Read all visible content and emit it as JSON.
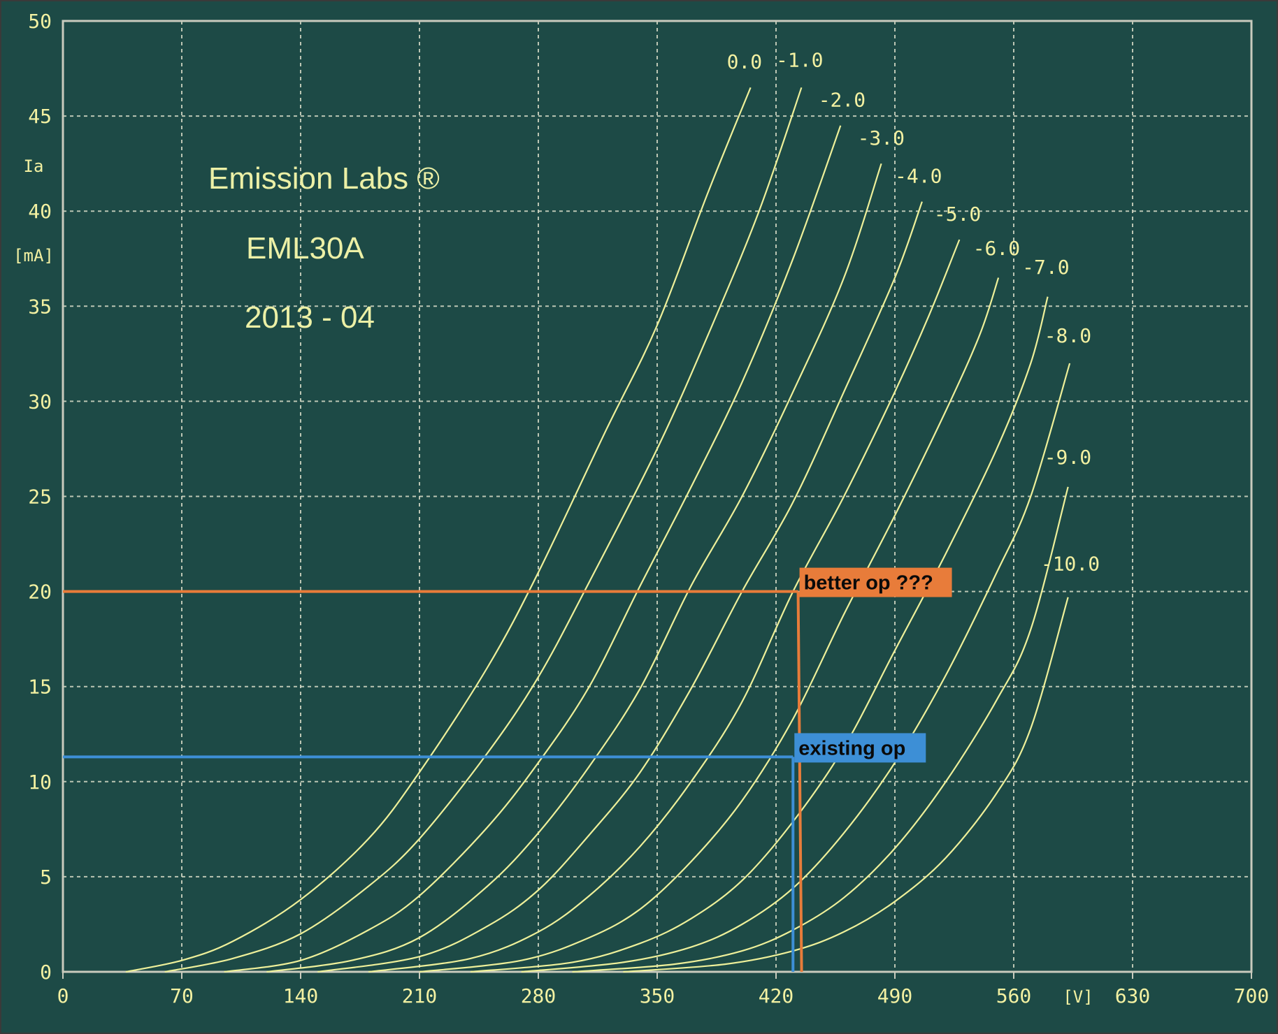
{
  "colors": {
    "background": "#1d4a46",
    "grid": "#d8dcc8",
    "curve": "#eef09a",
    "text": "#f3f1a2",
    "better_op": "#e87c3a",
    "existing_op": "#3d8fd6"
  },
  "brand": {
    "line1": "Emission Labs ®",
    "line2": "EML30A",
    "line3": "2013 - 04"
  },
  "chart_data": {
    "type": "line",
    "title": "",
    "xlabel": "[V]",
    "ylabel_top": "Ia",
    "ylabel_bottom": "[mA]",
    "xlim": [
      0,
      700
    ],
    "ylim": [
      0,
      50
    ],
    "xticks": [
      0,
      70,
      140,
      210,
      280,
      350,
      420,
      490,
      560,
      630,
      700
    ],
    "yticks": [
      0,
      5,
      10,
      15,
      20,
      25,
      30,
      35,
      40,
      45,
      50
    ],
    "grid": true,
    "series": [
      {
        "name": "0.0",
        "points": [
          [
            37,
            0
          ],
          [
            70,
            0.6
          ],
          [
            100,
            1.6
          ],
          [
            140,
            3.8
          ],
          [
            180,
            7.0
          ],
          [
            210,
            10.5
          ],
          [
            250,
            16.0
          ],
          [
            280,
            21.0
          ],
          [
            320,
            28.5
          ],
          [
            350,
            34.0
          ],
          [
            380,
            41.0
          ],
          [
            405,
            46.5
          ]
        ]
      },
      {
        "name": "-1.0",
        "points": [
          [
            60,
            0
          ],
          [
            100,
            0.7
          ],
          [
            140,
            2.0
          ],
          [
            180,
            4.5
          ],
          [
            210,
            7.0
          ],
          [
            250,
            11.5
          ],
          [
            280,
            15.5
          ],
          [
            310,
            20.5
          ],
          [
            350,
            27.5
          ],
          [
            380,
            33.5
          ],
          [
            410,
            40.0
          ],
          [
            435,
            46.5
          ]
        ]
      },
      {
        "name": "-2.0",
        "points": [
          [
            95,
            0
          ],
          [
            140,
            0.6
          ],
          [
            180,
            2.2
          ],
          [
            210,
            4.0
          ],
          [
            250,
            7.6
          ],
          [
            280,
            11.0
          ],
          [
            310,
            15.0
          ],
          [
            340,
            20.3
          ],
          [
            370,
            25.5
          ],
          [
            400,
            31.0
          ],
          [
            430,
            37.5
          ],
          [
            458,
            44.5
          ]
        ]
      },
      {
        "name": "-3.0",
        "points": [
          [
            120,
            0
          ],
          [
            170,
            0.6
          ],
          [
            210,
            1.8
          ],
          [
            250,
            4.5
          ],
          [
            280,
            7.3
          ],
          [
            310,
            10.8
          ],
          [
            340,
            14.9
          ],
          [
            370,
            20.3
          ],
          [
            400,
            25.0
          ],
          [
            430,
            30.5
          ],
          [
            460,
            36.5
          ],
          [
            482,
            42.5
          ]
        ]
      },
      {
        "name": "-4.0",
        "points": [
          [
            150,
            0
          ],
          [
            210,
            0.8
          ],
          [
            250,
            2.4
          ],
          [
            280,
            4.3
          ],
          [
            310,
            7.2
          ],
          [
            340,
            10.5
          ],
          [
            370,
            14.9
          ],
          [
            400,
            20.0
          ],
          [
            430,
            24.7
          ],
          [
            460,
            30.5
          ],
          [
            490,
            36.5
          ],
          [
            506,
            40.5
          ]
        ]
      },
      {
        "name": "-5.0",
        "points": [
          [
            180,
            0
          ],
          [
            240,
            0.7
          ],
          [
            280,
            2.1
          ],
          [
            310,
            4.0
          ],
          [
            340,
            6.6
          ],
          [
            370,
            10.0
          ],
          [
            400,
            14.2
          ],
          [
            430,
            20.0
          ],
          [
            460,
            25.0
          ],
          [
            490,
            30.5
          ],
          [
            510,
            34.5
          ],
          [
            528,
            38.5
          ]
        ]
      },
      {
        "name": "-6.0",
        "points": [
          [
            210,
            0
          ],
          [
            270,
            0.6
          ],
          [
            310,
            1.8
          ],
          [
            340,
            3.3
          ],
          [
            370,
            5.8
          ],
          [
            400,
            9.0
          ],
          [
            430,
            13.3
          ],
          [
            460,
            18.8
          ],
          [
            490,
            24.0
          ],
          [
            520,
            29.5
          ],
          [
            540,
            33.5
          ],
          [
            551,
            36.5
          ]
        ]
      },
      {
        "name": "-7.0",
        "points": [
          [
            240,
            0
          ],
          [
            300,
            0.5
          ],
          [
            340,
            1.5
          ],
          [
            370,
            2.8
          ],
          [
            400,
            4.8
          ],
          [
            430,
            7.9
          ],
          [
            460,
            11.8
          ],
          [
            490,
            16.9
          ],
          [
            520,
            22.0
          ],
          [
            550,
            27.5
          ],
          [
            570,
            32.0
          ],
          [
            580,
            35.5
          ]
        ]
      },
      {
        "name": "-8.0",
        "points": [
          [
            270,
            0
          ],
          [
            330,
            0.5
          ],
          [
            370,
            1.3
          ],
          [
            400,
            2.5
          ],
          [
            430,
            4.4
          ],
          [
            460,
            7.3
          ],
          [
            490,
            11.0
          ],
          [
            520,
            15.6
          ],
          [
            550,
            21.0
          ],
          [
            570,
            25.0
          ],
          [
            593,
            32.0
          ]
        ]
      },
      {
        "name": "-9.0",
        "points": [
          [
            300,
            0
          ],
          [
            360,
            0.4
          ],
          [
            400,
            1.1
          ],
          [
            430,
            2.2
          ],
          [
            460,
            3.9
          ],
          [
            490,
            6.5
          ],
          [
            520,
            10.0
          ],
          [
            550,
            14.3
          ],
          [
            570,
            18.0
          ],
          [
            592,
            25.5
          ]
        ]
      },
      {
        "name": "-10.0",
        "points": [
          [
            330,
            0
          ],
          [
            390,
            0.4
          ],
          [
            430,
            1.1
          ],
          [
            460,
            2.1
          ],
          [
            490,
            3.7
          ],
          [
            520,
            6.0
          ],
          [
            550,
            9.4
          ],
          [
            570,
            12.8
          ],
          [
            592,
            19.7
          ]
        ]
      }
    ],
    "curve_labels": [
      {
        "text": "0.0",
        "x": 391,
        "y": 47.5
      },
      {
        "text": "-1.0",
        "x": 420,
        "y": 47.6
      },
      {
        "text": "-2.0",
        "x": 445,
        "y": 45.5
      },
      {
        "text": "-3.0",
        "x": 468,
        "y": 43.5
      },
      {
        "text": "-4.0",
        "x": 490,
        "y": 41.5
      },
      {
        "text": "-5.0",
        "x": 513,
        "y": 39.5
      },
      {
        "text": "-6.0",
        "x": 536,
        "y": 37.7
      },
      {
        "text": "-7.0",
        "x": 565,
        "y": 36.7
      },
      {
        "text": "-8.0",
        "x": 578,
        "y": 33.1
      },
      {
        "text": "-9.0",
        "x": 578,
        "y": 26.7
      },
      {
        "text": "-10.0",
        "x": 576,
        "y": 21.1
      }
    ],
    "annotations": [
      {
        "name": "better-op",
        "text": "better op ???",
        "x": 433,
        "y": 20.0,
        "color": "#e87c3a"
      },
      {
        "name": "existing-op",
        "text": "existing op",
        "x": 430,
        "y": 11.3,
        "color": "#3d8fd6"
      }
    ]
  }
}
